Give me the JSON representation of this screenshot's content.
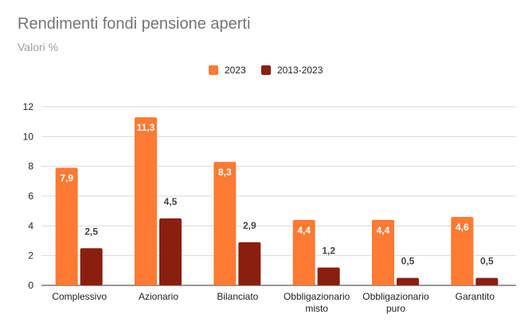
{
  "chart_data": {
    "type": "bar",
    "title": "Rendimenti fondi pensione aperti",
    "subtitle": "Valori %",
    "categories": [
      [
        "Complessivo"
      ],
      [
        "Azionario"
      ],
      [
        "Bilanciato"
      ],
      [
        "Obbligazionario",
        "misto"
      ],
      [
        "Obbligazionario",
        "puro"
      ],
      [
        "Garantito"
      ]
    ],
    "series": [
      {
        "name": "2023",
        "color": "#ff7a33",
        "values": [
          7.9,
          11.3,
          8.3,
          4.4,
          4.4,
          4.6
        ],
        "labels": [
          "7,9",
          "11,3",
          "8,3",
          "4,4",
          "4,4",
          "4,6"
        ]
      },
      {
        "name": "2013-2023",
        "color": "#8b1f0f",
        "values": [
          2.5,
          4.5,
          2.9,
          1.2,
          0.5,
          0.5
        ],
        "labels": [
          "2,5",
          "4,5",
          "2,9",
          "1,2",
          "0,5",
          "0,5"
        ]
      }
    ],
    "ylim": [
      0,
      12
    ],
    "yticks": [
      0,
      2,
      4,
      6,
      8,
      10,
      12
    ],
    "grid": true,
    "legend": "top-center"
  }
}
